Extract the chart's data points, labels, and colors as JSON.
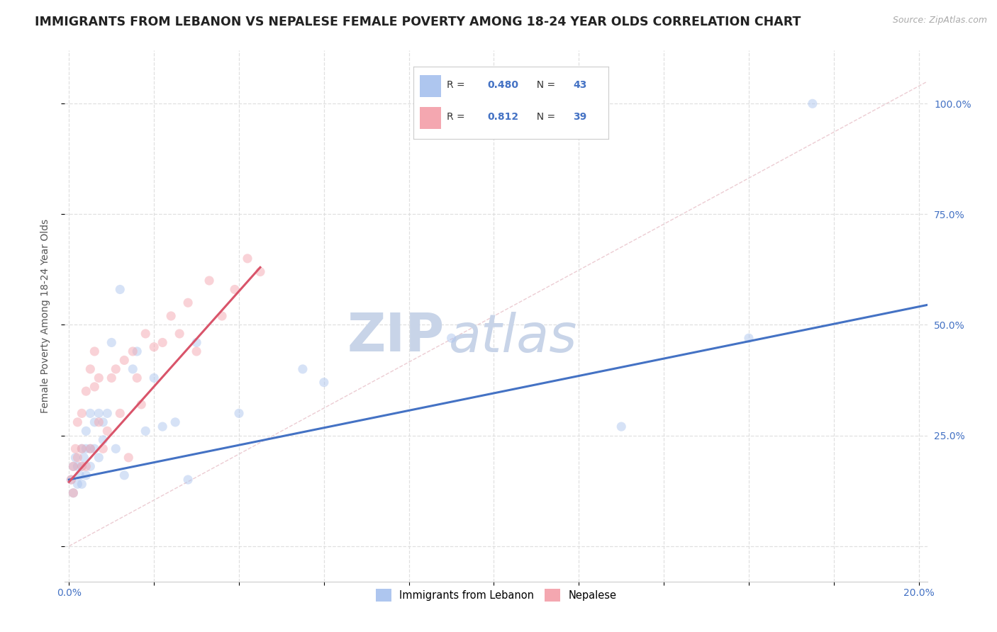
{
  "title": "IMMIGRANTS FROM LEBANON VS NEPALESE FEMALE POVERTY AMONG 18-24 YEAR OLDS CORRELATION CHART",
  "source": "Source: ZipAtlas.com",
  "ylabel": "Female Poverty Among 18-24 Year Olds",
  "x_ticks": [
    0.0,
    0.02,
    0.04,
    0.06,
    0.08,
    0.1,
    0.12,
    0.14,
    0.16,
    0.18,
    0.2
  ],
  "y_ticks": [
    0.0,
    0.25,
    0.5,
    0.75,
    1.0
  ],
  "y_tick_labels_right": [
    "",
    "25.0%",
    "50.0%",
    "75.0%",
    "100.0%"
  ],
  "xlim": [
    -0.001,
    0.202
  ],
  "ylim": [
    -0.08,
    1.12
  ],
  "legend_entries": [
    {
      "label": "Immigrants from Lebanon",
      "color": "#aec6ef"
    },
    {
      "label": "Nepalese",
      "color": "#f4a7b0"
    }
  ],
  "legend_r_n": [
    {
      "R": "0.480",
      "N": "43",
      "color": "#aec6ef"
    },
    {
      "R": "0.812",
      "N": "39",
      "color": "#f4a7b0"
    }
  ],
  "blue_scatter_x": [
    0.0005,
    0.001,
    0.001,
    0.0015,
    0.002,
    0.002,
    0.0025,
    0.003,
    0.003,
    0.003,
    0.0035,
    0.004,
    0.004,
    0.004,
    0.005,
    0.005,
    0.005,
    0.006,
    0.006,
    0.007,
    0.007,
    0.008,
    0.008,
    0.009,
    0.01,
    0.011,
    0.012,
    0.013,
    0.015,
    0.016,
    0.018,
    0.02,
    0.022,
    0.025,
    0.028,
    0.03,
    0.04,
    0.055,
    0.06,
    0.09,
    0.13,
    0.16,
    0.175
  ],
  "blue_scatter_y": [
    0.15,
    0.12,
    0.18,
    0.2,
    0.14,
    0.18,
    0.16,
    0.14,
    0.18,
    0.22,
    0.2,
    0.16,
    0.22,
    0.26,
    0.18,
    0.22,
    0.3,
    0.22,
    0.28,
    0.2,
    0.3,
    0.24,
    0.28,
    0.3,
    0.46,
    0.22,
    0.58,
    0.16,
    0.4,
    0.44,
    0.26,
    0.38,
    0.27,
    0.28,
    0.15,
    0.46,
    0.3,
    0.4,
    0.37,
    0.47,
    0.27,
    0.47,
    1.0
  ],
  "pink_scatter_x": [
    0.0005,
    0.001,
    0.001,
    0.0015,
    0.002,
    0.002,
    0.003,
    0.003,
    0.003,
    0.004,
    0.004,
    0.005,
    0.005,
    0.006,
    0.006,
    0.007,
    0.007,
    0.008,
    0.009,
    0.01,
    0.011,
    0.012,
    0.013,
    0.014,
    0.015,
    0.016,
    0.017,
    0.018,
    0.02,
    0.022,
    0.024,
    0.026,
    0.028,
    0.03,
    0.033,
    0.036,
    0.039,
    0.042,
    0.045
  ],
  "pink_scatter_y": [
    0.15,
    0.12,
    0.18,
    0.22,
    0.2,
    0.28,
    0.18,
    0.22,
    0.3,
    0.18,
    0.35,
    0.22,
    0.4,
    0.36,
    0.44,
    0.28,
    0.38,
    0.22,
    0.26,
    0.38,
    0.4,
    0.3,
    0.42,
    0.2,
    0.44,
    0.38,
    0.32,
    0.48,
    0.45,
    0.46,
    0.52,
    0.48,
    0.55,
    0.44,
    0.6,
    0.52,
    0.58,
    0.65,
    0.62
  ],
  "blue_line_x": [
    0.0,
    0.202
  ],
  "blue_line_y": [
    0.15,
    0.545
  ],
  "pink_line_x": [
    0.0,
    0.045
  ],
  "pink_line_y": [
    0.145,
    0.63
  ],
  "diagonal_line_x": [
    0.0,
    0.202
  ],
  "diagonal_line_y": [
    0.0,
    1.05
  ],
  "scatter_alpha": 0.5,
  "scatter_size": 90,
  "blue_color": "#aec6ef",
  "pink_color": "#f4a7b0",
  "blue_line_color": "#4472c4",
  "pink_line_color": "#d9546a",
  "diagonal_color": "#cccccc",
  "background_color": "#ffffff",
  "grid_color": "#dddddd",
  "title_fontsize": 12.5,
  "axis_label_fontsize": 10,
  "tick_fontsize": 10,
  "watermark_zip": "ZIP",
  "watermark_atlas": "atlas",
  "watermark_color": "#c8d4e8"
}
